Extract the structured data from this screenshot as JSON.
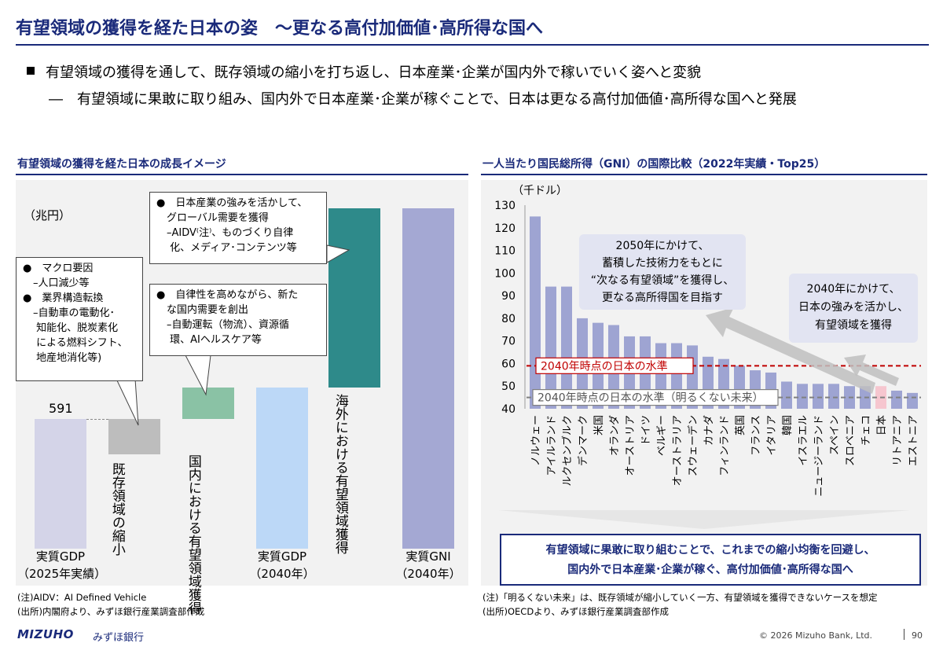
{
  "header": {
    "title": "有望領域の獲得を経た日本の姿　～更なる高付加価値･高所得な国へ",
    "bullet_main": "有望領域の獲得を通して、既存領域の縮小を打ち返し、日本産業･企業が国内外で稼いでいく姿へと変貌",
    "bullet_sub": "―　有望領域に果敢に取り組み、国内外で日本産業･企業が稼ぐことで、日本は更なる高付加価値･高所得な国へと発展"
  },
  "left": {
    "section_title": "有望領域の獲得を経た日本の成長イメージ",
    "unit": "（兆円）",
    "value_label": "591",
    "bar_labels": {
      "shrink": "既存領域の縮小",
      "domestic": "国内における有望領域獲得",
      "overseas": "海外における有望領域獲得"
    },
    "callout_macro": [
      "●　マクロ要因",
      "　–人口減少等",
      "●　業界構造転換",
      "　–自動車の電動化･",
      "　 知能化、脱炭素化",
      "　 による燃料シフト、",
      "　 地産地消化等)"
    ],
    "callout_domestic": [
      "●　自律性を高めながら、新た",
      "　な国内需要を創出",
      "　–自動運転（物流）、資源循",
      "　 環、AIヘルスケア等"
    ],
    "callout_global": [
      "●　日本産業の強みを活かして、",
      "　グローバル需要を獲得",
      "　–AIDV⁽注⁾、ものづくり自律",
      "　 化、メディア･コンテンツ等"
    ],
    "x_labels": [
      {
        "line1": "実質GDP",
        "line2": "（2025年実績）"
      },
      {
        "line1": "実質GDP",
        "line2": "（2040年）"
      },
      {
        "line1": "実質GNI",
        "line2": "（2040年）"
      }
    ],
    "note1": "(注)AIDV：AI Defined Vehicle",
    "note2": "(出所)内閣府より、みずほ銀行産業調査部作成"
  },
  "right": {
    "section_title": "一人当たり国民総所得（GNI）の国際比較（2022年実績・Top25）",
    "callout_2050": [
      "2050年にかけて、",
      "蓄積した技術力をもとに",
      "“次なる有望領域”を獲得し、",
      "更なる高所得国を目指す"
    ],
    "callout_2040": [
      "2040年にかけて、",
      "日本の強みを活かし、",
      "有望領域を獲得"
    ],
    "conclusion": [
      "有望領域に果敢に取り組むことで、これまでの縮小均衡を回避し、",
      "国内外で日本産業･企業が稼ぐ、高付加価値･高所得な国へ"
    ],
    "note1": "(注)「明るくない未来」は、既存領域が縮小していく一方、有望領域を獲得できないケースを想定",
    "note2": "(出所)OECDより、みずほ銀行産業調査部作成"
  },
  "chart_data": {
    "type": "bar",
    "title": "一人当たり国民総所得（GNI）の国際比較（2022年実績・Top25）",
    "ylabel": "（千ドル）",
    "ylim": [
      40,
      130
    ],
    "yticks": [
      40,
      50,
      60,
      70,
      80,
      90,
      100,
      110,
      120,
      130
    ],
    "categories": [
      "ノルウェー",
      "アイルランド",
      "ルクセンブルク",
      "デンマーク",
      "米国",
      "オランダ",
      "オーストリア",
      "ドイツ",
      "ベルギー",
      "オーストラリア",
      "スウェーデン",
      "カナダ",
      "フィンランド",
      "英国",
      "フランス",
      "イタリア",
      "韓国",
      "イスラエル",
      "ニュージーランド",
      "スペイン",
      "スロベニア",
      "チェコ",
      "日本",
      "リトアニア",
      "エストニア"
    ],
    "values": [
      125,
      94,
      94,
      80,
      78,
      77,
      72,
      72,
      69,
      69,
      68,
      63,
      62,
      59,
      57,
      56,
      52,
      51,
      51,
      51,
      50,
      50,
      50,
      48,
      47
    ],
    "highlight": "日本",
    "bar_color": "#9ea4d2",
    "highlight_color": "#f6c6cf",
    "reference_lines": [
      {
        "label": "2040年時点の日本の水準",
        "value": 59,
        "color": "#c00000"
      },
      {
        "label": "2040年時点の日本の水準（明るくない未来）",
        "value": 45,
        "color": "#808080"
      }
    ]
  }
}
